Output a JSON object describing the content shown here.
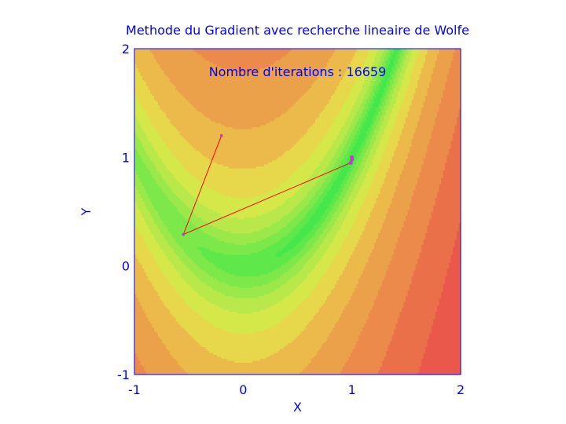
{
  "chart_data": {
    "type": "contour",
    "title": "Methode du Gradient avec recherche lineaire de Wolfe",
    "annotation": "Nombre d'iterations : 16659",
    "xlabel": "X",
    "ylabel": "Y",
    "xlim": [
      -1,
      2
    ],
    "ylim": [
      -1,
      2
    ],
    "xticks": [
      -1,
      0,
      1,
      2
    ],
    "yticks": [
      -1,
      0,
      1,
      2
    ],
    "xtick_labels": [
      "-1",
      "0",
      "1",
      "2"
    ],
    "ytick_labels": [
      "-1",
      "0",
      "1",
      "2"
    ],
    "function": "rosenbrock",
    "contour_levels": [
      0.5,
      2,
      5,
      10,
      20,
      40,
      80,
      160,
      320,
      640,
      1280,
      2560
    ],
    "colormap": [
      "#44e84a",
      "#5fe84a",
      "#7de84a",
      "#9be84a",
      "#b8e84a",
      "#d4e84a",
      "#e6d84a",
      "#ebba4a",
      "#eba04a",
      "#eb8a4a",
      "#ea704a",
      "#e9584a",
      "#e8484a"
    ],
    "path_color": "#ff0000",
    "marker_color": "#bf40bf",
    "path": [
      {
        "x": -0.2,
        "y": 1.2
      },
      {
        "x": -0.55,
        "y": 0.29
      },
      {
        "x": 0.99,
        "y": 0.95
      },
      {
        "x": 1.0,
        "y": 0.98
      },
      {
        "x": 1.0,
        "y": 1.0
      }
    ]
  },
  "colors": {
    "text": "#0000ff",
    "frame": "#0000ff"
  }
}
